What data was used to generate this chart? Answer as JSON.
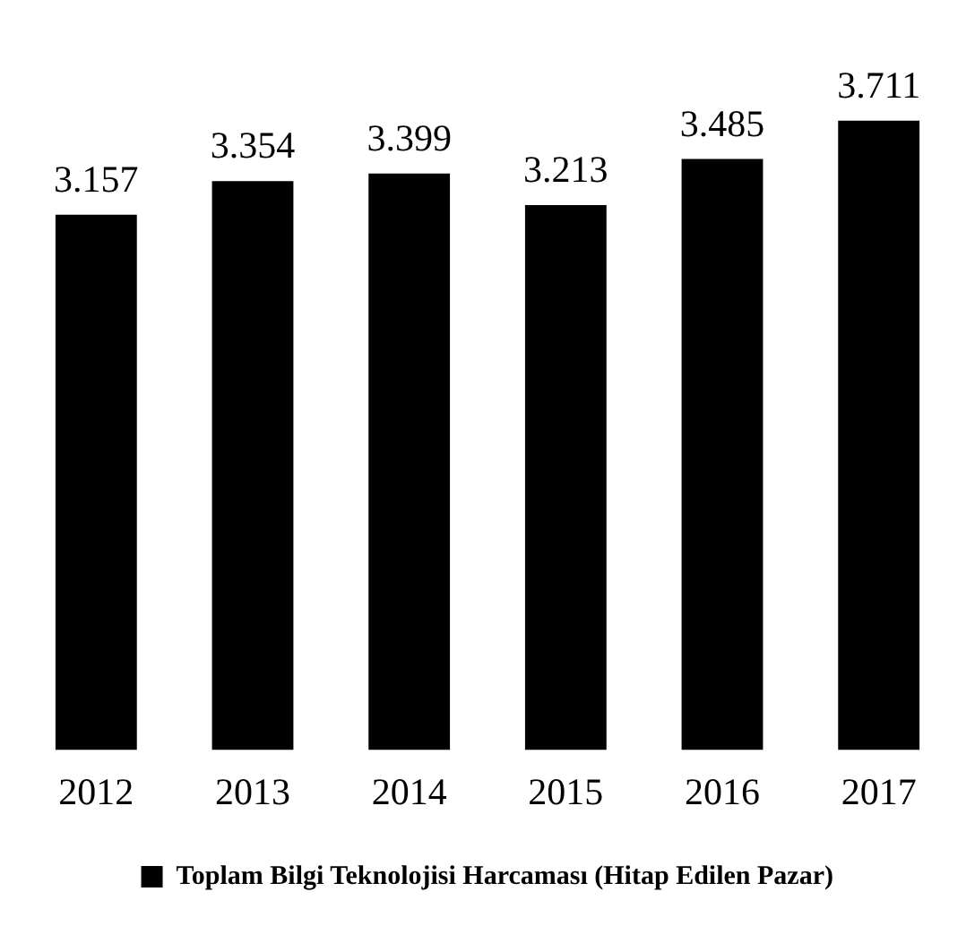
{
  "chart_data": {
    "type": "bar",
    "categories": [
      "2012",
      "2013",
      "2014",
      "2015",
      "2016",
      "2017"
    ],
    "series": [
      {
        "name": "Toplam Bilgi Teknolojisi Harcaması (Hitap Edilen Pazar)",
        "color": "#000000",
        "values": [
          3.157,
          3.354,
          3.399,
          3.213,
          3.485,
          3.711
        ]
      }
    ],
    "data_labels": true,
    "grid": false,
    "legend": "bottom"
  }
}
